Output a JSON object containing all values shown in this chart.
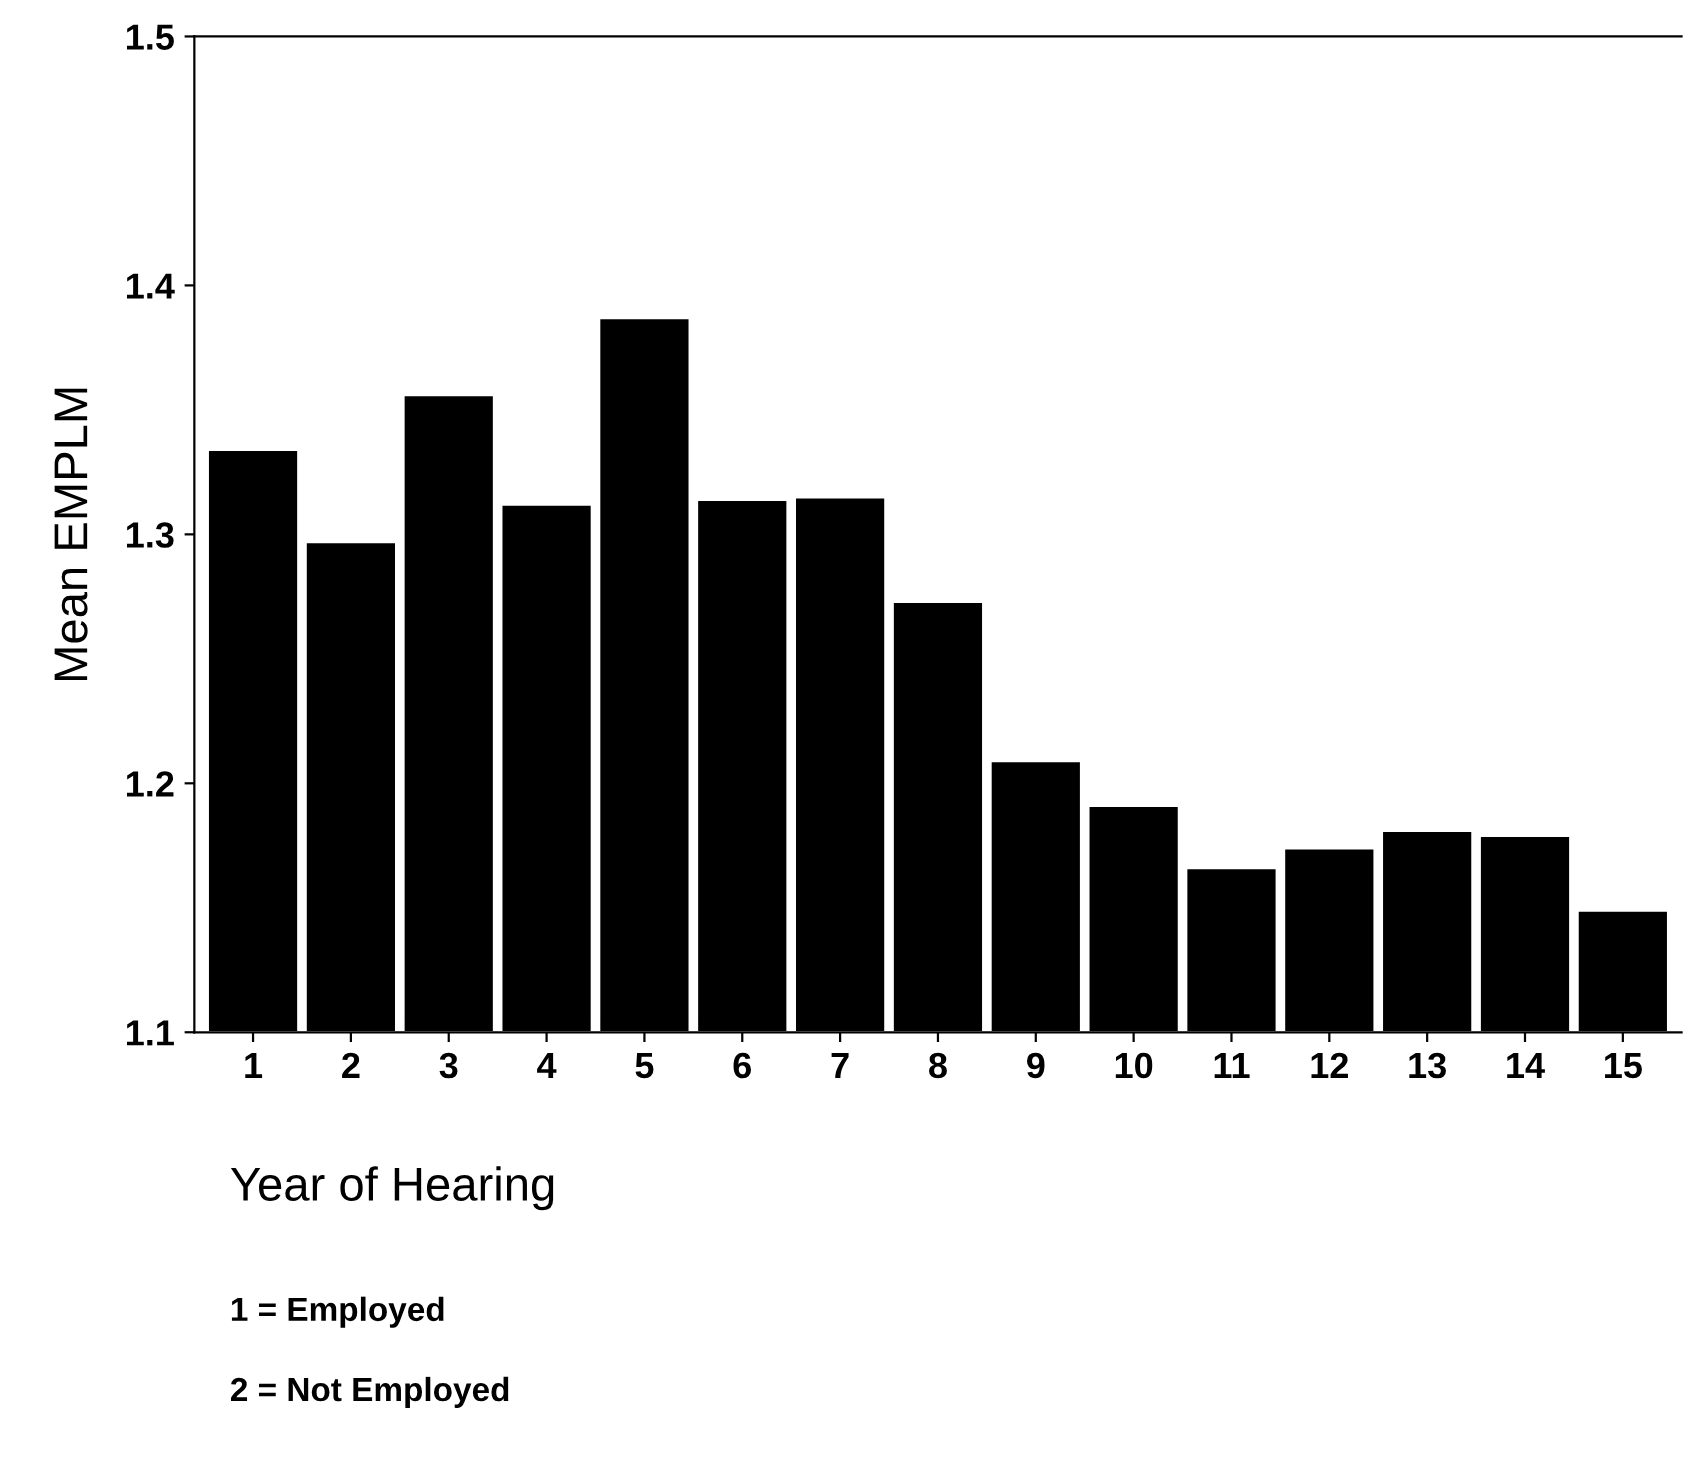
{
  "chart_data": {
    "type": "bar",
    "xlabel": "Year of Hearing",
    "ylabel": "Mean EMPLM",
    "categories": [
      "1",
      "2",
      "3",
      "4",
      "5",
      "6",
      "7",
      "8",
      "9",
      "10",
      "11",
      "12",
      "13",
      "14",
      "15"
    ],
    "values": [
      1.334,
      1.297,
      1.356,
      1.312,
      1.387,
      1.314,
      1.315,
      1.273,
      1.209,
      1.191,
      1.166,
      1.174,
      1.181,
      1.179,
      1.149
    ],
    "color": "#000000",
    "ylim": [
      1.1,
      1.5
    ],
    "yticks": [
      1.1,
      1.2,
      1.3,
      1.4,
      1.5
    ],
    "grid": false,
    "annotations": [
      "1 = Employed",
      "2 = Not Employed"
    ]
  }
}
